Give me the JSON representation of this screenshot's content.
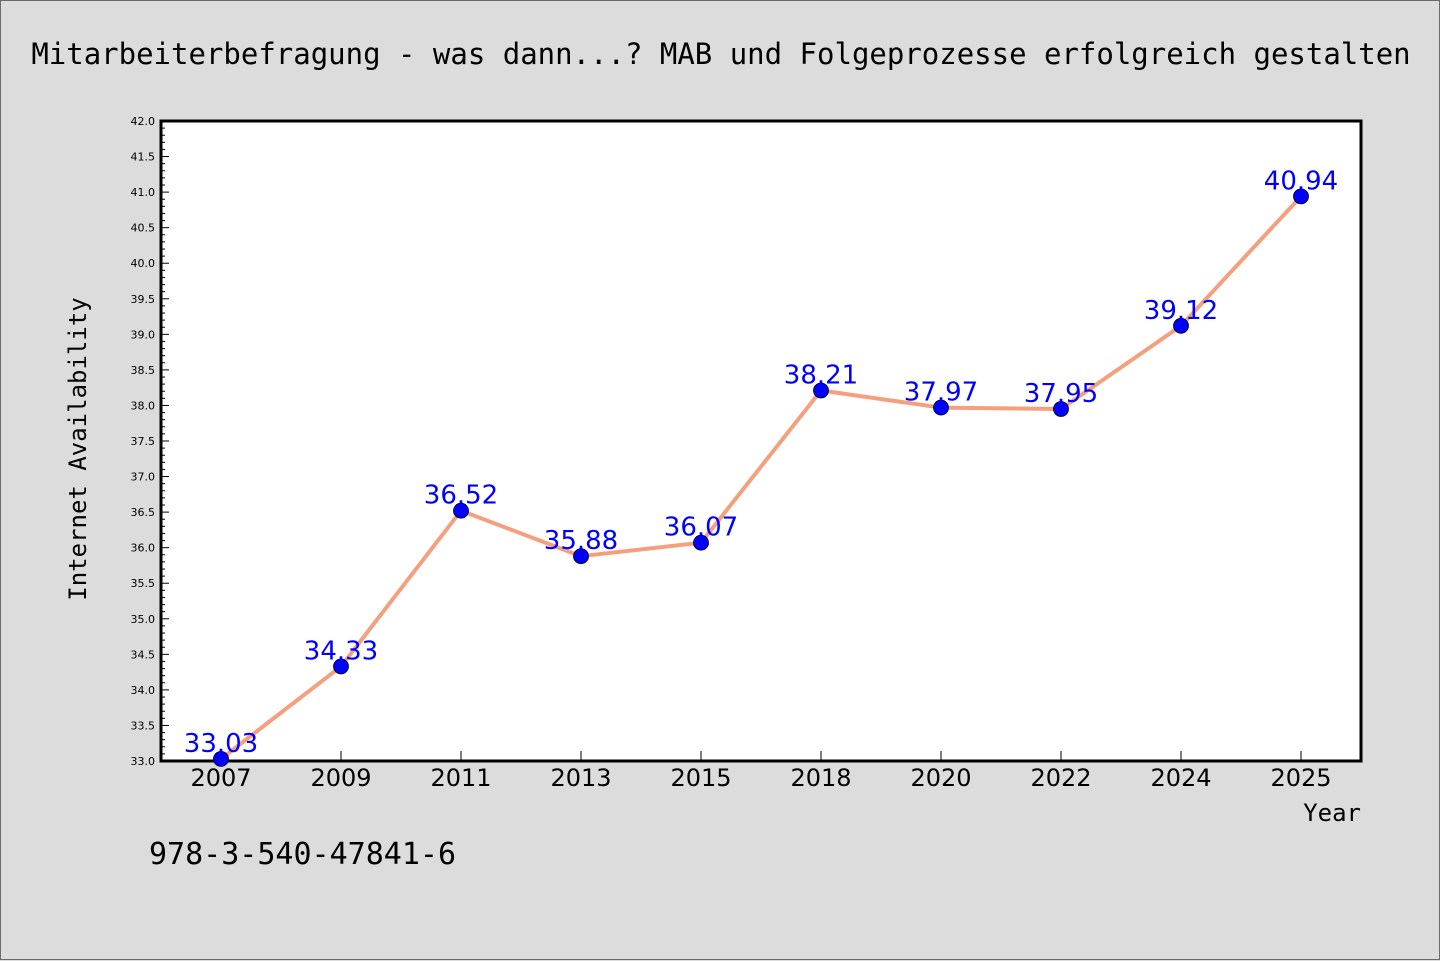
{
  "chart_data": {
    "type": "line",
    "title": "Mitarbeiterbefragung - was dann...? MAB und Folgeprozesse erfolgreich gestalten",
    "xlabel": "Year",
    "ylabel": "Internet Availability",
    "categories": [
      "2007",
      "2009",
      "2011",
      "2013",
      "2015",
      "2018",
      "2020",
      "2022",
      "2024",
      "2025"
    ],
    "series": [
      {
        "values": [
          33.03,
          34.33,
          36.52,
          35.88,
          36.07,
          38.21,
          37.97,
          37.95,
          39.12,
          40.94
        ],
        "labels": [
          "33.03",
          "34.33",
          "36.52",
          "35.88",
          "36.07",
          "38.21",
          "37.97",
          "37.95",
          "39.12",
          "40.94"
        ]
      }
    ],
    "ylim": [
      33.0,
      42.0
    ],
    "yticks": [
      "33.0",
      "33.5",
      "34.0",
      "34.5",
      "35.0",
      "35.5",
      "36.0",
      "36.5",
      "37.0",
      "37.5",
      "38.0",
      "38.5",
      "39.0",
      "39.5",
      "40.0",
      "40.5",
      "41.0",
      "41.5",
      "42.0"
    ],
    "grid": false,
    "colors": {
      "line": "#f4a07e",
      "marker": "#0000ff",
      "data_label": "#0000ff",
      "background": "#dcdcdc",
      "plot_background": "#ffffff"
    }
  },
  "annotation": "978-3-540-47841-6"
}
